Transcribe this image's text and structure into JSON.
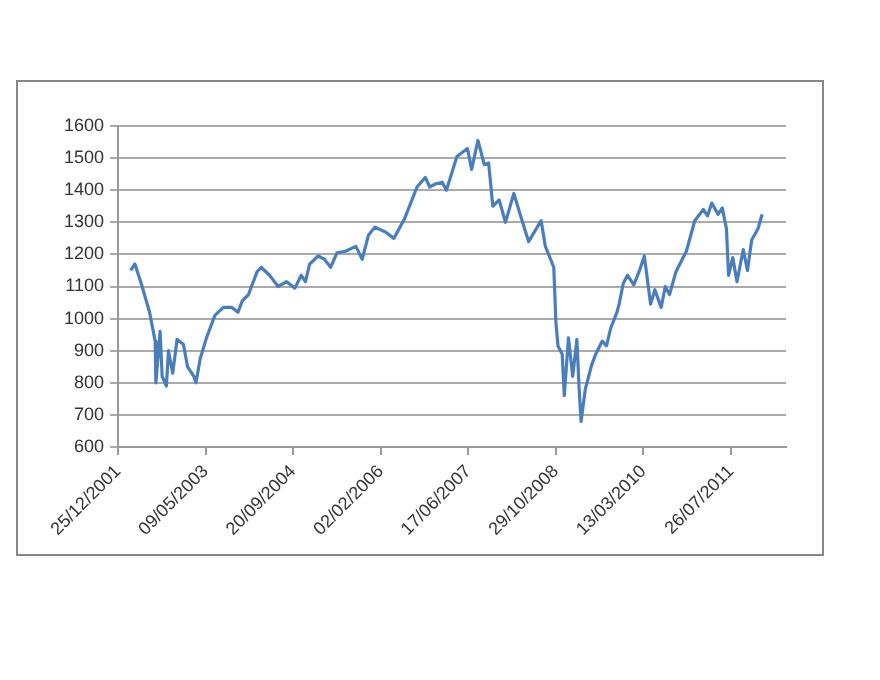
{
  "chart_data": {
    "type": "line",
    "x": [
      "2002-03-07",
      "2002-03-31",
      "2002-05-06",
      "2002-06-23",
      "2002-07-25",
      "2002-07-29",
      "2002-08-22",
      "2002-09-03",
      "2002-09-27",
      "2002-10-09",
      "2002-11-02",
      "2002-11-27",
      "2003-01-02",
      "2003-01-26",
      "2003-03-03",
      "2003-03-15",
      "2003-04-08",
      "2003-05-14",
      "2003-07-01",
      "2003-08-18",
      "2003-10-05",
      "2003-11-10",
      "2003-12-04",
      "2004-01-09",
      "2004-02-26",
      "2004-03-21",
      "2004-05-08",
      "2004-06-26",
      "2004-08-13",
      "2004-09-30",
      "2004-11-05",
      "2004-11-29",
      "2004-12-23",
      "2005-02-09",
      "2005-03-17",
      "2005-04-22",
      "2005-05-28",
      "2005-07-15",
      "2005-09-13",
      "2005-10-19",
      "2005-11-24",
      "2005-12-30",
      "2006-03-01",
      "2006-04-18",
      "2006-06-17",
      "2006-08-28",
      "2006-10-15",
      "2006-11-08",
      "2006-12-14",
      "2007-01-19",
      "2007-02-12",
      "2007-04-13",
      "2007-06-12",
      "2007-07-06",
      "2007-08-11",
      "2007-09-16",
      "2007-10-11",
      "2007-11-04",
      "2007-12-10",
      "2008-01-15",
      "2008-03-03",
      "2008-04-08",
      "2008-05-26",
      "2008-08-06",
      "2008-08-30",
      "2008-10-17",
      "2008-10-29",
      "2008-11-10",
      "2008-12-04",
      "2008-12-16",
      "2009-01-09",
      "2009-02-02",
      "2009-02-26",
      "2009-03-10",
      "2009-03-22",
      "2009-04-15",
      "2009-05-21",
      "2009-06-14",
      "2009-07-21",
      "2009-08-14",
      "2009-09-07",
      "2009-10-13",
      "2009-10-25",
      "2009-11-18",
      "2009-12-12",
      "2010-01-17",
      "2010-02-22",
      "2010-03-18",
      "2010-04-23",
      "2010-05-17",
      "2010-06-22",
      "2010-07-16",
      "2010-08-09",
      "2010-09-14",
      "2010-11-13",
      "2010-12-31",
      "2011-02-18",
      "2011-03-14",
      "2011-04-07",
      "2011-05-13",
      "2011-06-06",
      "2011-06-30",
      "2011-07-12",
      "2011-08-05",
      "2011-08-29",
      "2011-10-04",
      "2011-10-28",
      "2011-11-21",
      "2011-12-27",
      "2012-01-20"
    ],
    "series": [
      {
        "color": "#4a7ebb",
        "values": [
          1150,
          1170,
          1110,
          1020,
          930,
          800,
          960,
          820,
          790,
          900,
          830,
          935,
          920,
          850,
          820,
          800,
          875,
          940,
          1010,
          1035,
          1035,
          1020,
          1055,
          1075,
          1145,
          1160,
          1135,
          1100,
          1115,
          1095,
          1135,
          1115,
          1170,
          1195,
          1185,
          1160,
          1205,
          1210,
          1225,
          1185,
          1260,
          1285,
          1270,
          1250,
          1310,
          1410,
          1440,
          1410,
          1420,
          1425,
          1400,
          1505,
          1530,
          1465,
          1555,
          1480,
          1485,
          1350,
          1370,
          1300,
          1390,
          1325,
          1240,
          1305,
          1225,
          1160,
          990,
          915,
          890,
          760,
          940,
          820,
          935,
          790,
          680,
          780,
          855,
          890,
          930,
          915,
          970,
          1020,
          1045,
          1110,
          1135,
          1105,
          1155,
          1195,
          1045,
          1090,
          1035,
          1100,
          1075,
          1145,
          1210,
          1305,
          1340,
          1320,
          1360,
          1325,
          1345,
          1280,
          1135,
          1190,
          1115,
          1215,
          1150,
          1245,
          1280,
          1325
        ]
      }
    ],
    "xlim": [
      "2001-12-25",
      "2012-06-04"
    ],
    "xticks": [
      {
        "value": "2001-12-25",
        "label": "25/12/2001"
      },
      {
        "value": "2003-05-09",
        "label": "09/05/2003"
      },
      {
        "value": "2004-09-20",
        "label": "20/09/2004"
      },
      {
        "value": "2006-02-02",
        "label": "02/02/2006"
      },
      {
        "value": "2007-06-17",
        "label": "17/06/2007"
      },
      {
        "value": "2008-10-29",
        "label": "29/10/2008"
      },
      {
        "value": "2010-03-13",
        "label": "13/03/2010"
      },
      {
        "value": "2011-07-26",
        "label": "26/07/2011"
      }
    ],
    "ylim": [
      600,
      1600
    ],
    "yticks": [
      600,
      700,
      800,
      900,
      1000,
      1100,
      1200,
      1300,
      1400,
      1500,
      1600
    ],
    "grid": "y",
    "legend": false,
    "marker": "none",
    "line_style": "solid"
  }
}
